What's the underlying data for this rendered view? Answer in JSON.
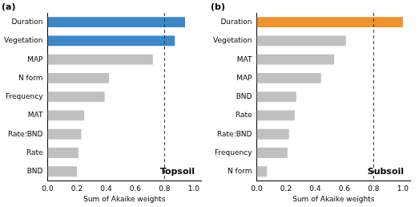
{
  "chart_data": [
    {
      "type": "bar",
      "orientation": "horizontal",
      "title": "(a)",
      "annotation": "Topsoil",
      "x_label": "Sum of Akaike weights",
      "categories": [
        "Duration",
        "Vegetation",
        "MAP",
        "N form",
        "Frequency",
        "MAT",
        "Rate:BND",
        "Rate",
        "BND"
      ],
      "values": [
        0.94,
        0.87,
        0.72,
        0.42,
        0.39,
        0.25,
        0.23,
        0.21,
        0.2
      ],
      "colors": [
        "#3b87c9",
        "#3b87c9",
        "#c0c0c0",
        "#c0c0c0",
        "#c0c0c0",
        "#c0c0c0",
        "#c0c0c0",
        "#c0c0c0",
        "#c0c0c0"
      ],
      "xlim": [
        0,
        1.05
      ],
      "xticks": [
        {
          "value": 0,
          "label": "0.0"
        },
        0.2,
        0.4,
        0.6,
        0.8,
        {
          "value": 1,
          "label": "1.0"
        }
      ],
      "reference_line": {
        "x": 0.8,
        "line_style": "dashed"
      },
      "grid": false
    },
    {
      "type": "bar",
      "orientation": "horizontal",
      "title": "(b)",
      "annotation": "Subsoil",
      "x_label": "Sum of Akaike weights",
      "categories": [
        "Duration",
        "Vegetation",
        "MAT",
        "MAP",
        "BND",
        "Rate",
        "Rate:BND",
        "Frequency",
        "N form"
      ],
      "values": [
        1.0,
        0.61,
        0.53,
        0.44,
        0.27,
        0.26,
        0.22,
        0.21,
        0.07
      ],
      "colors": [
        "#f0932b",
        "#c0c0c0",
        "#c0c0c0",
        "#c0c0c0",
        "#c0c0c0",
        "#c0c0c0",
        "#c0c0c0",
        "#c0c0c0",
        "#c0c0c0"
      ],
      "xlim": [
        0,
        1.05
      ],
      "xticks": [
        {
          "value": 0,
          "label": "0.0"
        },
        0.2,
        0.4,
        0.6,
        0.8,
        {
          "value": 1,
          "label": "1.0"
        }
      ],
      "reference_line": {
        "x": 0.8,
        "line_style": "dashed"
      },
      "grid": false
    }
  ]
}
